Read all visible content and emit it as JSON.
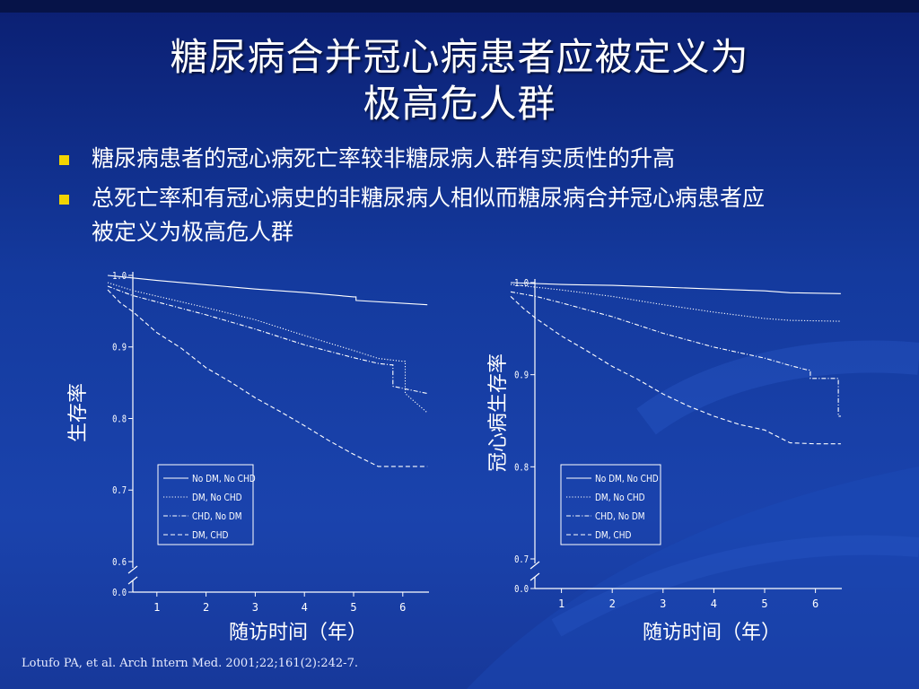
{
  "slide": {
    "title_line1": "糖尿病合并冠心病患者应被定义为",
    "title_line2": "极高危人群",
    "bullets": [
      "糖尿病患者的冠心病死亡率较非糖尿病人群有实质性的升高",
      "总死亡率和有冠心病史的非糖尿病人相似而糖尿病合并冠心病患者应",
      "被定义为极高危人群"
    ],
    "citation": "Lotufo PA, et al. Arch Intern Med. 2001;22;161(2):242-7."
  },
  "colors": {
    "background": "#1a43ad",
    "bullet": "#f2d400",
    "text": "#ffffff"
  },
  "chart_data": [
    {
      "type": "line",
      "xlabel": "随访时间（年）",
      "ylabel": "生存率",
      "ylim": [
        0.0,
        1.0
      ],
      "axis_break": true,
      "y_ticks": [
        "0.0",
        "0.6",
        "0.7",
        "0.8",
        "0.9",
        "1.0"
      ],
      "x_ticks": [
        "1",
        "2",
        "3",
        "4",
        "5",
        "6"
      ],
      "legend_position": "bottom-left",
      "series": [
        {
          "name": "No DM, No CHD",
          "dash": "solid",
          "x": [
            0,
            1,
            2,
            3,
            4,
            5,
            5.05,
            6.5
          ],
          "y": [
            1.0,
            0.993,
            0.987,
            0.981,
            0.976,
            0.97,
            0.965,
            0.959
          ]
        },
        {
          "name": "DM, No CHD",
          "dash": "dot",
          "x": [
            0,
            0.5,
            1,
            2,
            3,
            4,
            5,
            5.5,
            6,
            6.05,
            6.5
          ],
          "y": [
            0.99,
            0.979,
            0.971,
            0.955,
            0.938,
            0.916,
            0.895,
            0.884,
            0.88,
            0.835,
            0.808
          ]
        },
        {
          "name": "CHD, No DM",
          "dash": "dashdot",
          "x": [
            0,
            0.5,
            1,
            2,
            3,
            4,
            5,
            5.5,
            5.75,
            5.8,
            6.5
          ],
          "y": [
            0.985,
            0.972,
            0.963,
            0.945,
            0.925,
            0.903,
            0.885,
            0.877,
            0.875,
            0.845,
            0.835
          ]
        },
        {
          "name": "DM, CHD",
          "dash": "dash",
          "x": [
            0,
            0.25,
            0.5,
            1,
            1.5,
            2,
            2.5,
            3,
            3.5,
            4,
            4.5,
            5,
            5.5,
            6,
            6.5
          ],
          "y": [
            0.98,
            0.962,
            0.95,
            0.92,
            0.898,
            0.871,
            0.851,
            0.829,
            0.81,
            0.79,
            0.769,
            0.75,
            0.733,
            0.733,
            0.733
          ]
        }
      ]
    },
    {
      "type": "line",
      "xlabel": "随访时间（年）",
      "ylabel": "冠心病生存率",
      "ylim": [
        0.0,
        1.0
      ],
      "axis_break": true,
      "y_ticks": [
        "0.0",
        "0.7",
        "0.8",
        "0.9",
        "1.0"
      ],
      "x_ticks": [
        "1",
        "2",
        "3",
        "4",
        "5",
        "6"
      ],
      "legend_position": "bottom-left",
      "series": [
        {
          "name": "No DM, No CHD",
          "dash": "solid",
          "x": [
            0,
            1,
            2,
            3,
            4,
            5,
            5.5,
            6.5
          ],
          "y": [
            1.0,
            0.998,
            0.997,
            0.995,
            0.993,
            0.991,
            0.989,
            0.988
          ]
        },
        {
          "name": "DM, No CHD",
          "dash": "dot",
          "x": [
            0,
            1,
            2,
            3,
            4,
            5,
            5.5,
            6.5
          ],
          "y": [
            0.998,
            0.992,
            0.985,
            0.976,
            0.968,
            0.961,
            0.959,
            0.958
          ]
        },
        {
          "name": "CHD, No DM",
          "dash": "dashdot",
          "x": [
            0,
            0.5,
            1,
            2,
            3,
            4,
            5,
            5.5,
            5.85,
            5.9,
            6.4,
            6.45,
            6.5
          ],
          "y": [
            0.99,
            0.985,
            0.978,
            0.963,
            0.945,
            0.93,
            0.918,
            0.91,
            0.905,
            0.896,
            0.896,
            0.855,
            0.855
          ]
        },
        {
          "name": "DM, CHD",
          "dash": "dash",
          "x": [
            0,
            0.25,
            0.5,
            1,
            1.5,
            2,
            2.5,
            3,
            3.5,
            4,
            4.5,
            5,
            5.5,
            6,
            6.5
          ],
          "y": [
            0.985,
            0.972,
            0.961,
            0.942,
            0.926,
            0.909,
            0.895,
            0.879,
            0.866,
            0.855,
            0.846,
            0.84,
            0.826,
            0.825,
            0.825
          ]
        }
      ]
    }
  ]
}
